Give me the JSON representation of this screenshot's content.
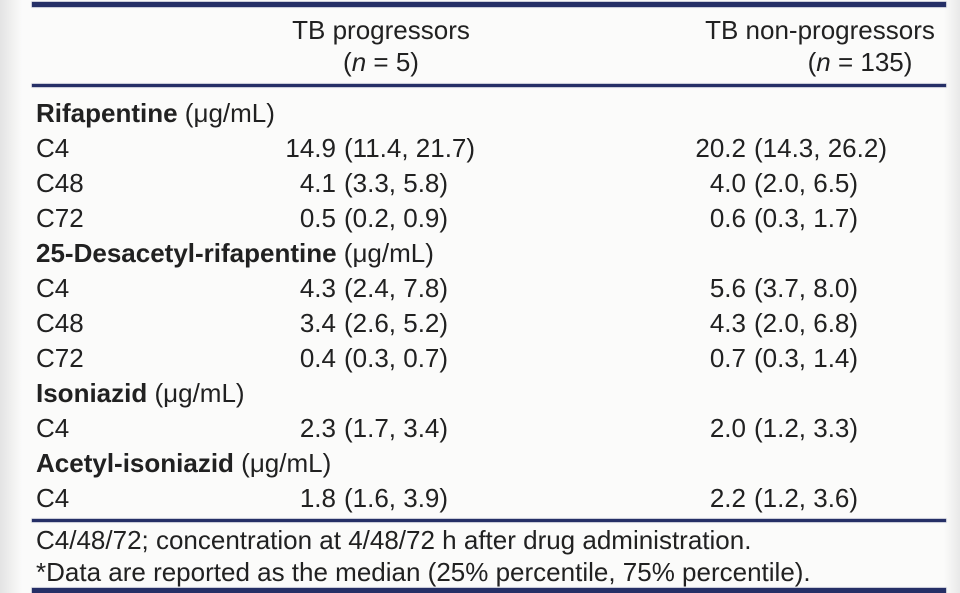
{
  "colors": {
    "rule": "#252f66",
    "text": "#212121",
    "background": "#fbfbfa"
  },
  "header": {
    "col_progressors": {
      "label": "TB progressors",
      "n_prefix": "(",
      "n_var": "n",
      "n_suffix": " = 5)"
    },
    "col_nonprogressors": {
      "label": "TB non-progressors",
      "n_prefix": "(",
      "n_var": "n",
      "n_suffix": " = 135)"
    }
  },
  "rows": [
    {
      "type": "section",
      "name": "Rifapentine",
      "unit": " (μg/mL)"
    },
    {
      "type": "data",
      "label": "C4",
      "p_med": "14.9",
      "p_iqr": "(11.4, 21.7)",
      "np_med": "20.2",
      "np_iqr": "(14.3, 26.2)"
    },
    {
      "type": "data",
      "label": "C48",
      "p_med": "4.1",
      "p_iqr": "(3.3, 5.8)",
      "np_med": "4.0",
      "np_iqr": "(2.0, 6.5)"
    },
    {
      "type": "data",
      "label": "C72",
      "p_med": "0.5",
      "p_iqr": "(0.2, 0.9)",
      "np_med": "0.6",
      "np_iqr": "(0.3, 1.7)"
    },
    {
      "type": "section",
      "name": "25-Desacetyl-rifapentine",
      "unit": " (μg/mL)"
    },
    {
      "type": "data",
      "label": "C4",
      "p_med": "4.3",
      "p_iqr": "(2.4, 7.8)",
      "np_med": "5.6",
      "np_iqr": "(3.7, 8.0)"
    },
    {
      "type": "data",
      "label": "C48",
      "p_med": "3.4",
      "p_iqr": "(2.6, 5.2)",
      "np_med": "4.3",
      "np_iqr": "(2.0, 6.8)"
    },
    {
      "type": "data",
      "label": "C72",
      "p_med": "0.4",
      "p_iqr": "(0.3, 0.7)",
      "np_med": "0.7",
      "np_iqr": "(0.3, 1.4)"
    },
    {
      "type": "section",
      "name": "Isoniazid",
      "unit": " (μg/mL)"
    },
    {
      "type": "data",
      "label": "C4",
      "p_med": "2.3",
      "p_iqr": "(1.7, 3.4)",
      "np_med": "2.0",
      "np_iqr": "(1.2, 3.3)"
    },
    {
      "type": "section",
      "name": "Acetyl-isoniazid",
      "unit": " (μg/mL)"
    },
    {
      "type": "data",
      "label": "C4",
      "p_med": "1.8",
      "p_iqr": "(1.6, 3.9)",
      "np_med": "2.2",
      "np_iqr": "(1.2, 3.6)"
    }
  ],
  "footnotes": {
    "line1": "C4/48/72; concentration at 4/48/72 h after drug administration.",
    "line2": "*Data are reported as the median (25% percentile, 75% percentile)."
  }
}
